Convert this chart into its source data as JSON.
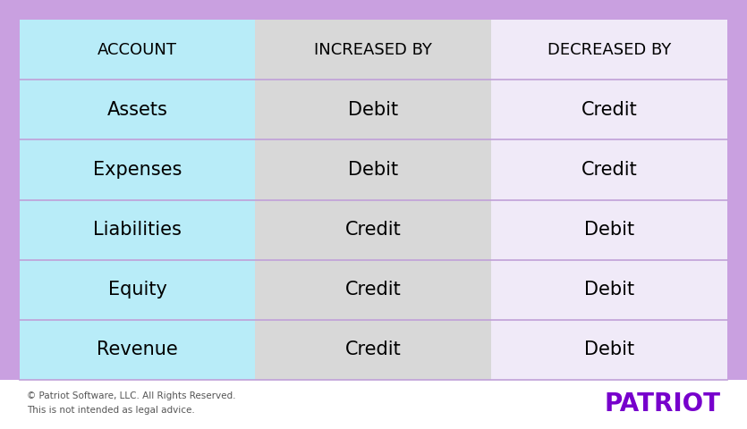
{
  "outer_bg_color": "#c9a0e0",
  "inner_bg_color": "#f0eaf8",
  "col1_bg": "#b8ecf8",
  "col2_bg": "#d8d8d8",
  "col3_bg": "#f0eaf8",
  "divider_color": "#c0a0d8",
  "text_color": "#000000",
  "patriot_color": "#7700cc",
  "footer_text_color": "#555555",
  "footer_bg_color": "#ffffff",
  "headers": [
    "ACCOUNT",
    "INCREASED BY",
    "DECREASED BY"
  ],
  "rows": [
    [
      "Assets",
      "Debit",
      "Credit"
    ],
    [
      "Expenses",
      "Debit",
      "Credit"
    ],
    [
      "Liabilities",
      "Credit",
      "Debit"
    ],
    [
      "Equity",
      "Credit",
      "Debit"
    ],
    [
      "Revenue",
      "Credit",
      "Debit"
    ]
  ],
  "footer_line1": "© Patriot Software, LLC. All Rights Reserved.",
  "footer_line2": "This is not intended as legal advice.",
  "patriot_label": "PATRIOT",
  "header_fontsize": 13,
  "cell_fontsize": 15,
  "footer_fontsize": 7.5,
  "patriot_fontsize": 20
}
